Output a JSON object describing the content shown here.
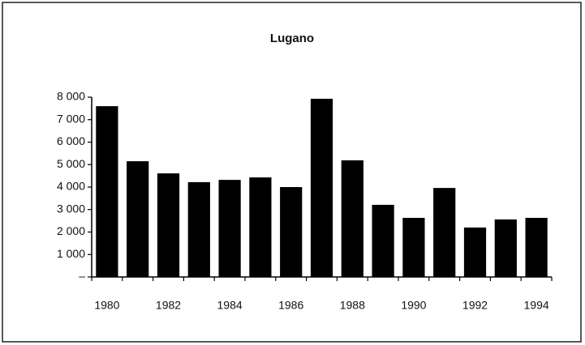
{
  "chart_data": {
    "type": "bar",
    "title": "Lugano",
    "categories": [
      "1980",
      null,
      "1982",
      null,
      "1984",
      null,
      "1986",
      null,
      "1988",
      null,
      "1990",
      null,
      "1992",
      null,
      "1994"
    ],
    "values": [
      7600,
      5150,
      4610,
      4220,
      4320,
      4430,
      4000,
      7930,
      5190,
      3210,
      2630,
      3960,
      2200,
      2560,
      2630
    ],
    "color": "#000000",
    "ylim": [
      0,
      8000
    ],
    "yticks": [
      {
        "value": 0,
        "label": "–"
      },
      {
        "value": 1000,
        "label": "1 000"
      },
      {
        "value": 2000,
        "label": "2 000"
      },
      {
        "value": 3000,
        "label": "3 000"
      },
      {
        "value": 4000,
        "label": "4 000"
      },
      {
        "value": 5000,
        "label": "5 000"
      },
      {
        "value": 6000,
        "label": "6 000"
      },
      {
        "value": 7000,
        "label": "7 000"
      },
      {
        "value": 8000,
        "label": "8 000"
      }
    ],
    "grid": false
  }
}
